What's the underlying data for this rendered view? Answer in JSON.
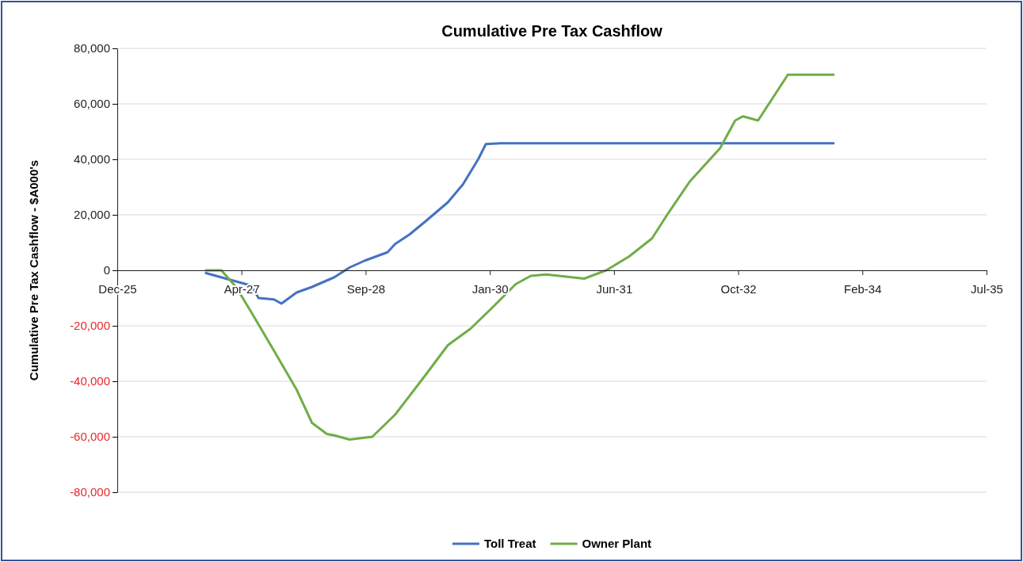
{
  "chart_data": {
    "type": "line",
    "title": "Cumulative Pre Tax Cashflow",
    "ylabel": "Cumulative Pre Tax Cashflow - $A000's",
    "xlim": [
      "2025-12-09",
      "2035-07-10"
    ],
    "xticks": [
      {
        "value": "2025-12-09",
        "label": "Dec-25"
      },
      {
        "value": "2027-04-23",
        "label": "Apr-27"
      },
      {
        "value": "2028-09-04",
        "label": "Sep-28"
      },
      {
        "value": "2030-01-17",
        "label": "Jan-30"
      },
      {
        "value": "2031-06-01",
        "label": "Jun-31"
      },
      {
        "value": "2032-10-13",
        "label": "Oct-32"
      },
      {
        "value": "2034-02-25",
        "label": "Feb-34"
      },
      {
        "value": "2035-07-10",
        "label": "Jul-35"
      }
    ],
    "ylim": [
      -80000,
      80000
    ],
    "yticks": [
      {
        "value": -80000,
        "label": "-80,000"
      },
      {
        "value": -60000,
        "label": "-60,000"
      },
      {
        "value": -40000,
        "label": "-40,000"
      },
      {
        "value": -20000,
        "label": "-20,000"
      },
      {
        "value": 0,
        "label": "0"
      },
      {
        "value": 20000,
        "label": "20,000"
      },
      {
        "value": 40000,
        "label": "40,000"
      },
      {
        "value": 60000,
        "label": "60,000"
      },
      {
        "value": 80000,
        "label": "80,000"
      }
    ],
    "grid": "y",
    "legend": "bottom",
    "series": [
      {
        "name": "Toll Treat",
        "color": "#4472c4",
        "x": [
          "2026-12",
          "2027-04",
          "2027-06",
          "2027-07",
          "2027-09",
          "2027-10",
          "2027-12",
          "2028-02",
          "2028-05",
          "2028-07",
          "2028-09",
          "2028-12",
          "2029-01",
          "2029-03",
          "2029-05",
          "2029-08",
          "2029-10",
          "2029-12",
          "2030-01",
          "2030-03",
          "2033-11"
        ],
        "values": [
          -1000,
          -4000,
          -5500,
          -10000,
          -10500,
          -12000,
          -8000,
          -6000,
          -2500,
          1000,
          3500,
          6500,
          9500,
          13000,
          17500,
          24500,
          31000,
          40000,
          45500,
          45800,
          45800
        ]
      },
      {
        "name": "Owner Plant",
        "color": "#70ad47",
        "x": [
          "2026-12",
          "2027-02",
          "2027-04",
          "2027-06",
          "2027-09",
          "2027-12",
          "2028-02",
          "2028-04",
          "2028-05",
          "2028-07",
          "2028-10",
          "2029-01",
          "2029-05",
          "2029-08",
          "2029-11",
          "2030-02",
          "2030-05",
          "2030-07",
          "2030-09",
          "2031-02",
          "2031-05",
          "2031-08",
          "2031-11",
          "2032-01",
          "2032-04",
          "2032-08",
          "2032-10",
          "2032-11",
          "2033-01",
          "2033-05",
          "2033-11"
        ],
        "values": [
          0,
          0,
          -6000,
          -15000,
          -29000,
          -43000,
          -55000,
          -59000,
          -59500,
          -61000,
          -60000,
          -52000,
          -38000,
          -27000,
          -21000,
          -13000,
          -5000,
          -2000,
          -1500,
          -3000,
          0,
          5000,
          11500,
          20000,
          32000,
          44000,
          54000,
          55500,
          54000,
          70500,
          70500
        ]
      }
    ]
  }
}
